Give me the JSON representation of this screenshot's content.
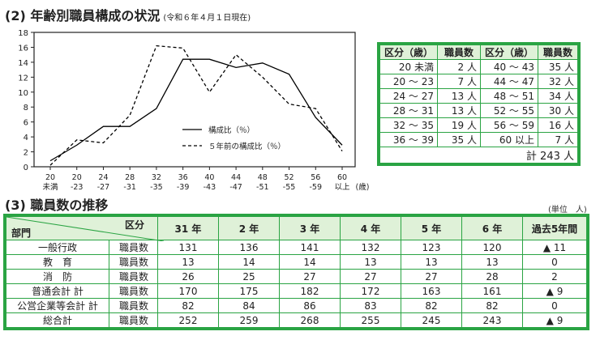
{
  "section2": {
    "title": "(2) 年齢別職員構成の状況",
    "note": "(令和６年４月１日現在)"
  },
  "section3": {
    "title": "(3) 職員数の推移",
    "unit": "(単位　人)"
  },
  "chart_data": {
    "type": "line",
    "x_ticks": [
      {
        "top": "20",
        "bottom": "未満"
      },
      {
        "top": "20",
        "bottom": "-23"
      },
      {
        "top": "24",
        "bottom": "-27"
      },
      {
        "top": "28",
        "bottom": "-31"
      },
      {
        "top": "32",
        "bottom": "-35"
      },
      {
        "top": "36",
        "bottom": "-39"
      },
      {
        "top": "40",
        "bottom": "-43"
      },
      {
        "top": "44",
        "bottom": "-47"
      },
      {
        "top": "48",
        "bottom": "-51"
      },
      {
        "top": "52",
        "bottom": "-55"
      },
      {
        "top": "56",
        "bottom": "-59"
      },
      {
        "top": "60",
        "bottom": "以上"
      }
    ],
    "x_unit": "(歳)",
    "y_ticks": [
      0,
      2,
      4,
      6,
      8,
      10,
      12,
      14,
      16,
      18
    ],
    "ylim": [
      0,
      18
    ],
    "series": [
      {
        "name": "構成比（％）",
        "style": "solid",
        "color": "#000000",
        "values": [
          0.8,
          2.9,
          5.4,
          5.4,
          7.8,
          14.4,
          14.4,
          13.3,
          13.9,
          12.4,
          6.6,
          2.9
        ]
      },
      {
        "name": "５年前の構成比（％）",
        "style": "dashed",
        "color": "#000000",
        "values": [
          0.2,
          3.6,
          3.2,
          6.9,
          16.2,
          15.9,
          10.0,
          15.0,
          12.0,
          8.4,
          7.8,
          2.1
        ]
      }
    ]
  },
  "age_table": {
    "headers": [
      "区分（歳）",
      "職員数",
      "区分（歳）",
      "職員数"
    ],
    "rows": [
      [
        "20 未満",
        "2 人",
        "40 ～ 43",
        "35 人"
      ],
      [
        "20 ～ 23",
        "7 人",
        "44 ～ 47",
        "32 人"
      ],
      [
        "24 ～ 27",
        "13 人",
        "48 ～ 51",
        "34 人"
      ],
      [
        "28 ～ 31",
        "13 人",
        "52 ～ 55",
        "30 人"
      ],
      [
        "32 ～ 35",
        "19 人",
        "56 ～ 59",
        "16 人"
      ],
      [
        "36 ～ 39",
        "35 人",
        "60 以上",
        "7 人"
      ]
    ],
    "total": "計 243 人"
  },
  "staff_table": {
    "corner_top": "区分",
    "corner_bottom": "部門",
    "years": [
      "31 年",
      "2 年",
      "3 年",
      "4 年",
      "5 年",
      "6 年",
      "過去5年間"
    ],
    "rows": [
      {
        "dept": "一般行政",
        "label": "職員数",
        "values": [
          "131",
          "136",
          "141",
          "132",
          "123",
          "120",
          "▲ 11"
        ]
      },
      {
        "dept": "教　育",
        "label": "職員数",
        "values": [
          "13",
          "14",
          "14",
          "13",
          "13",
          "13",
          "0"
        ]
      },
      {
        "dept": "消　防",
        "label": "職員数",
        "values": [
          "26",
          "25",
          "27",
          "27",
          "27",
          "28",
          "2"
        ]
      },
      {
        "dept": "普通会計 計",
        "label": "職員数",
        "values": [
          "170",
          "175",
          "182",
          "172",
          "163",
          "161",
          "▲ 9"
        ]
      },
      {
        "dept": "公営企業等会計 計",
        "label": "職員数",
        "values": [
          "82",
          "84",
          "86",
          "83",
          "82",
          "82",
          "0"
        ]
      },
      {
        "dept": "総合計",
        "label": "職員数",
        "values": [
          "252",
          "259",
          "268",
          "255",
          "245",
          "243",
          "▲ 9"
        ]
      }
    ]
  }
}
